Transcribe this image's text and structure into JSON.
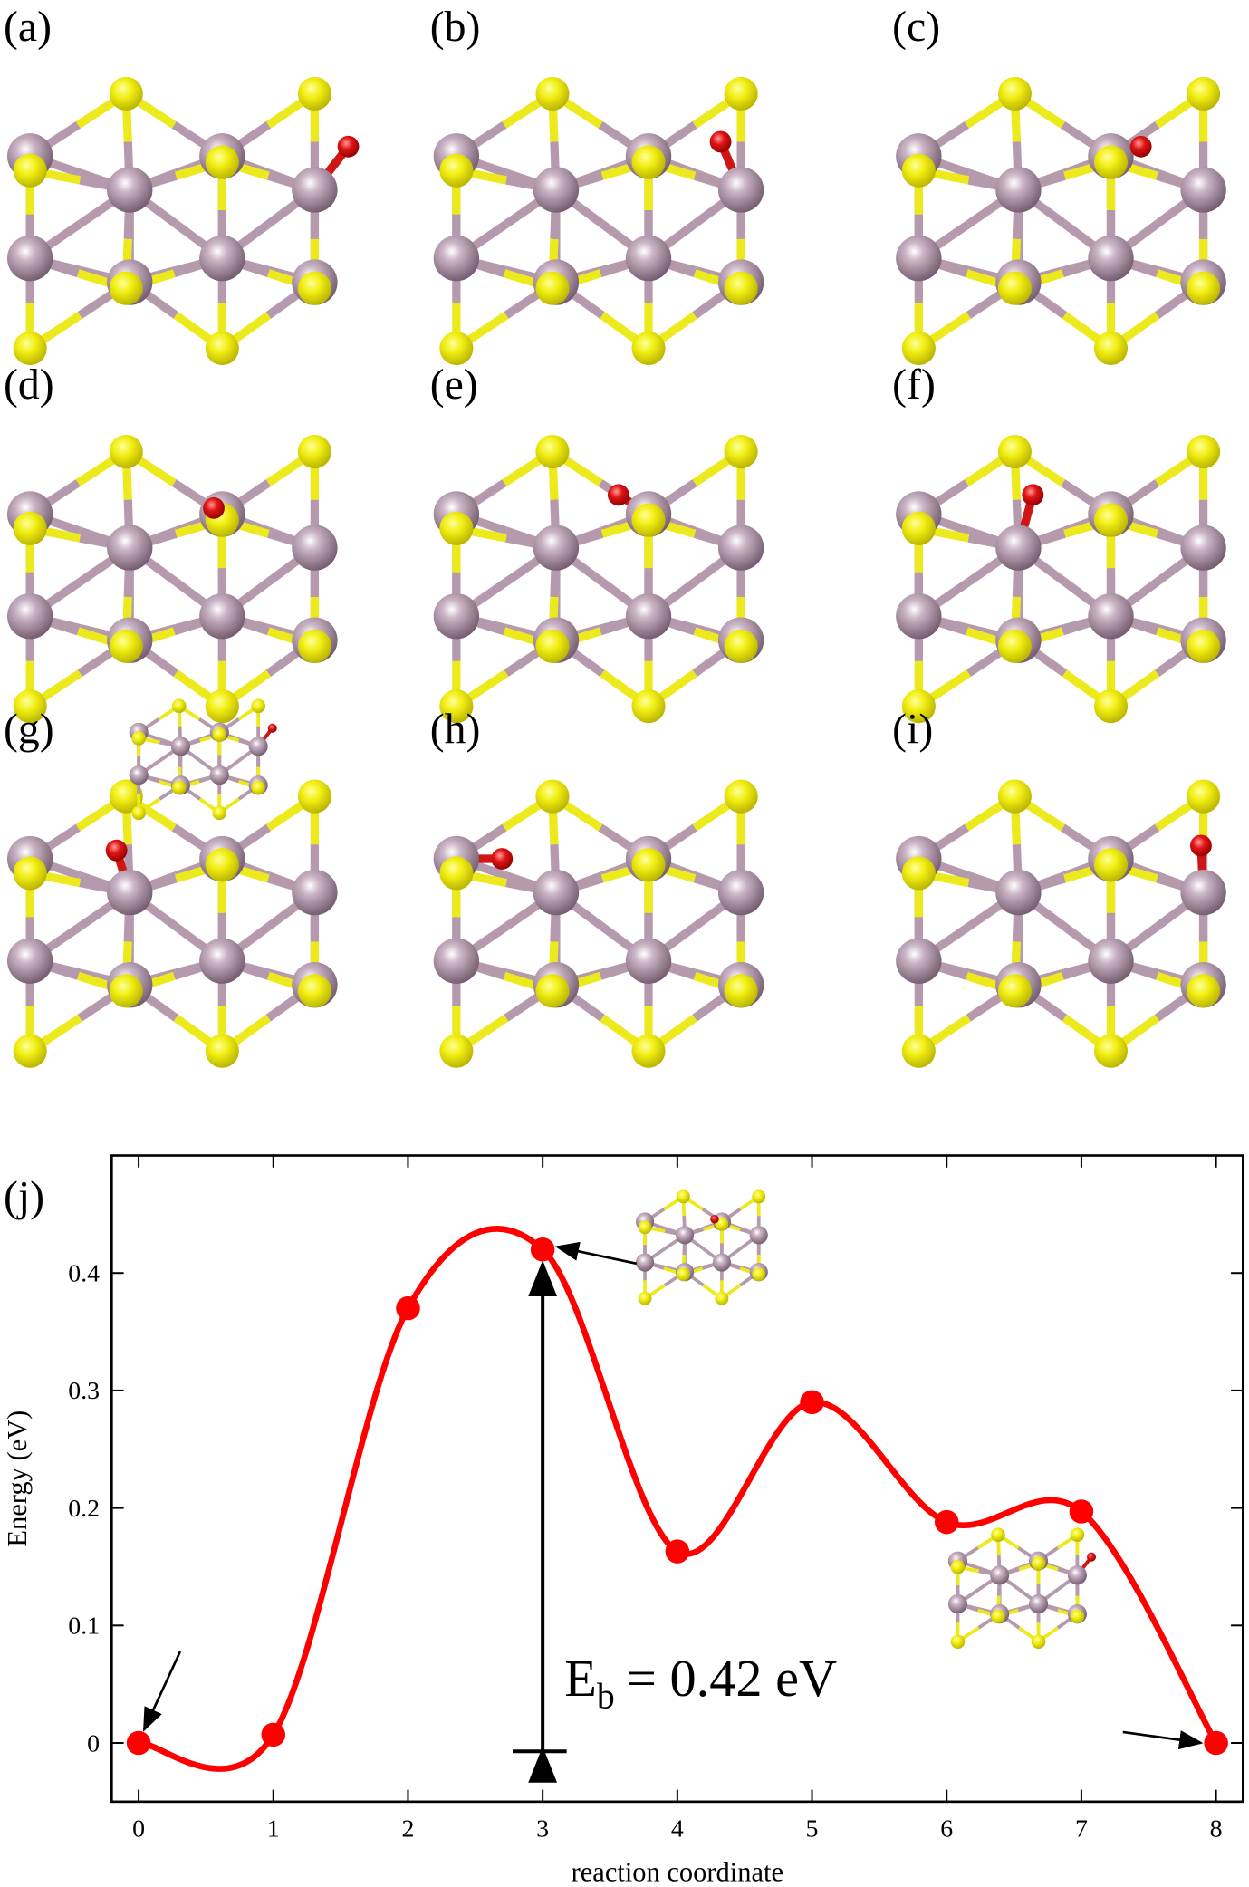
{
  "panels": [
    {
      "label": "(a)"
    },
    {
      "label": "(b)"
    },
    {
      "label": "(c)"
    },
    {
      "label": "(d)"
    },
    {
      "label": "(e)"
    },
    {
      "label": "(f)"
    },
    {
      "label": "(g)"
    },
    {
      "label": "(h)"
    },
    {
      "label": "(i)"
    }
  ],
  "chart_data": {
    "type": "line",
    "label": "(j)",
    "xlabel": "reaction coordinate",
    "ylabel": "Energy (eV)",
    "x": [
      0,
      1,
      2,
      3,
      4,
      5,
      6,
      7,
      8
    ],
    "values": [
      0,
      0.007,
      0.37,
      0.42,
      0.163,
      0.29,
      0.188,
      0.197,
      0
    ],
    "color": "#ff0000",
    "xlim": [
      -0.2,
      8.2
    ],
    "xticks": [
      0,
      1,
      2,
      3,
      4,
      5,
      6,
      7,
      8
    ],
    "ylim": [
      -0.05,
      0.5
    ],
    "yticks": [
      0,
      0.1,
      0.2,
      0.3,
      0.4
    ],
    "annotation": {
      "symbol": "E",
      "subscript": "b",
      "text": "= 0.42 eV"
    }
  }
}
